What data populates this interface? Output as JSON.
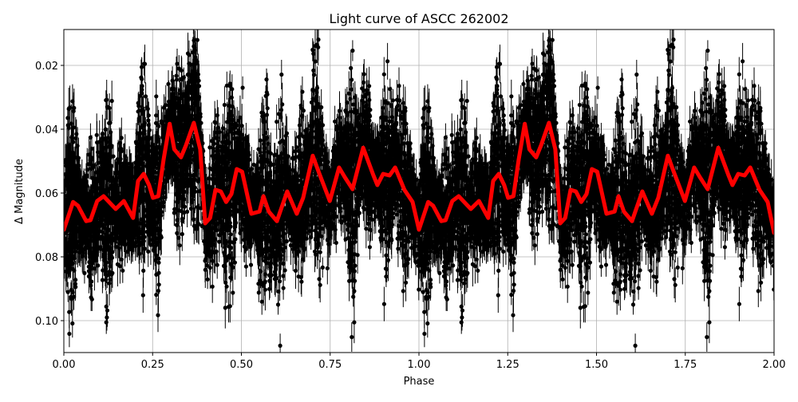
{
  "chart_data": {
    "type": "scatter",
    "title": "Light curve of ASCC 262002",
    "xlabel": "Phase",
    "ylabel": "Δ Magnitude",
    "xlim": [
      0,
      2
    ],
    "ylim": [
      0.11,
      0.00875
    ],
    "y_inverted": true,
    "grid": true,
    "xticks": [
      "0.00",
      "0.25",
      "0.50",
      "0.75",
      "1.00",
      "1.25",
      "1.50",
      "1.75",
      "2.00"
    ],
    "xtick_values": [
      0,
      0.25,
      0.5,
      0.75,
      1,
      1.25,
      1.5,
      1.75,
      2
    ],
    "yticks": [
      "0.02",
      "0.04",
      "0.06",
      "0.08",
      "0.10"
    ],
    "ytick_values": [
      0.02,
      0.04,
      0.06,
      0.08,
      0.1
    ],
    "colors": {
      "points": "#000000",
      "model": "#ff0000",
      "grid": "#b0b0b0"
    },
    "model_curve": {
      "x": [
        0,
        0.026,
        0.04,
        0.063,
        0.075,
        0.094,
        0.112,
        0.146,
        0.169,
        0.195,
        0.209,
        0.225,
        0.24,
        0.251,
        0.266,
        0.281,
        0.298,
        0.311,
        0.33,
        0.344,
        0.366,
        0.384,
        0.398,
        0.412,
        0.427,
        0.442,
        0.457,
        0.472,
        0.487,
        0.502,
        0.528,
        0.551,
        0.562,
        0.577,
        0.6,
        0.629,
        0.656,
        0.674,
        0.701,
        0.719,
        0.749,
        0.775,
        0.791,
        0.813,
        0.843,
        0.872,
        0.883,
        0.899,
        0.917,
        0.933,
        0.959,
        0.982,
        1.0,
        1.026,
        1.04,
        1.063,
        1.075,
        1.094,
        1.112,
        1.146,
        1.169,
        1.195,
        1.209,
        1.225,
        1.24,
        1.251,
        1.266,
        1.281,
        1.298,
        1.311,
        1.33,
        1.344,
        1.366,
        1.384,
        1.398,
        1.412,
        1.427,
        1.442,
        1.457,
        1.472,
        1.487,
        1.502,
        1.528,
        1.551,
        1.562,
        1.577,
        1.6,
        1.629,
        1.656,
        1.674,
        1.701,
        1.719,
        1.749,
        1.775,
        1.791,
        1.813,
        1.843,
        1.872,
        1.883,
        1.899,
        1.917,
        1.933,
        1.959,
        1.982,
        2.0
      ],
      "y": [
        0.0715,
        0.0628,
        0.064,
        0.0688,
        0.0685,
        0.0625,
        0.061,
        0.065,
        0.0625,
        0.0678,
        0.0562,
        0.054,
        0.0575,
        0.0615,
        0.061,
        0.0495,
        0.0383,
        0.0463,
        0.0488,
        0.045,
        0.038,
        0.0463,
        0.0695,
        0.0678,
        0.059,
        0.0595,
        0.0628,
        0.0603,
        0.0525,
        0.0533,
        0.0665,
        0.0658,
        0.061,
        0.0658,
        0.0688,
        0.0595,
        0.0665,
        0.0615,
        0.0483,
        0.0538,
        0.0625,
        0.052,
        0.055,
        0.0588,
        0.0458,
        0.0545,
        0.0575,
        0.054,
        0.0545,
        0.052,
        0.059,
        0.0628,
        0.0715,
        0.0628,
        0.064,
        0.0688,
        0.0685,
        0.0625,
        0.061,
        0.065,
        0.0625,
        0.0678,
        0.0562,
        0.054,
        0.0575,
        0.0615,
        0.061,
        0.0495,
        0.0383,
        0.0463,
        0.0488,
        0.045,
        0.038,
        0.0463,
        0.0695,
        0.0678,
        0.059,
        0.0595,
        0.0628,
        0.0603,
        0.0525,
        0.0533,
        0.0665,
        0.0658,
        0.061,
        0.0658,
        0.0688,
        0.0595,
        0.0665,
        0.0615,
        0.0483,
        0.0538,
        0.0625,
        0.052,
        0.055,
        0.0588,
        0.0458,
        0.0545,
        0.0575,
        0.054,
        0.0545,
        0.052,
        0.059,
        0.0628,
        0.0725
      ]
    }
  }
}
